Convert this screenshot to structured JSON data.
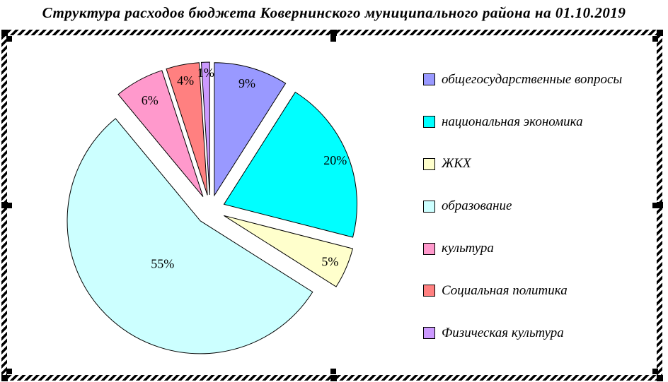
{
  "chart_data": {
    "type": "pie",
    "title": "Структура расходов бюджета Ковернинского муниципального района на 01.10.2019",
    "categories": [
      "общегосударственные вопросы",
      "национальная экономика",
      "ЖКХ",
      "образование",
      "культура",
      "Социальная политика",
      "Физическая культура"
    ],
    "values": [
      9,
      20,
      5,
      55,
      6,
      4,
      1
    ],
    "data_labels": [
      "9%",
      "20%",
      "5%",
      "55%",
      "6%",
      "4%",
      "1%"
    ],
    "colors": [
      "#9999FF",
      "#00FFFF",
      "#FFFFCC",
      "#CCFFFF",
      "#FF99CC",
      "#FF8080",
      "#CC99FF"
    ],
    "units": "percent",
    "exploded": true,
    "start_angle_deg": 0,
    "direction": "clockwise",
    "legend_position": "right",
    "slice_outline_color": "#000000",
    "selection_state": "chart-object-selected-with-hatched-border"
  }
}
